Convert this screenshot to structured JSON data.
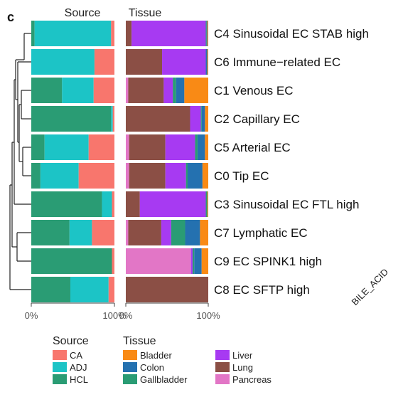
{
  "panel_label": "c",
  "cut_text": "BILE_ACID",
  "colors": {
    "CA": "#F8766D",
    "ADJ": "#1CC4C6",
    "HCL": "#2A9C74",
    "Bladder": "#F98A15",
    "Colon": "#2471B0",
    "Gallbladder": "#2A9C74",
    "Liver": "#A73AF2",
    "Lung": "#8B4F45",
    "Pancreas": "#E276C6"
  },
  "chart_data": [
    {
      "type": "bar",
      "orientation": "horizontal",
      "stacked": true,
      "title": "Source",
      "categories": [
        "C4 Sinusoidal EC STAB high",
        "C6 Immune−related EC",
        "C1 Venous EC",
        "C2 Capillary EC",
        "C5 Arterial EC",
        "C0 Tip EC",
        "C3 Sinusoidal EC FTL high",
        "C7 Lymphatic EC",
        "C9 EC SPINK1 high",
        "C8 EC SFTP high"
      ],
      "series": [
        {
          "name": "HCL",
          "values": [
            4,
            0,
            37,
            96,
            16,
            11,
            85,
            46,
            97,
            47
          ]
        },
        {
          "name": "ADJ",
          "values": [
            92,
            76,
            38,
            2,
            53,
            46,
            12,
            27,
            0,
            46
          ]
        },
        {
          "name": "CA",
          "values": [
            4,
            24,
            25,
            2,
            31,
            43,
            3,
            27,
            3,
            7
          ]
        }
      ],
      "xlim": [
        0,
        100
      ],
      "x_ticks": [
        "0%",
        "100%"
      ]
    },
    {
      "type": "bar",
      "orientation": "horizontal",
      "stacked": true,
      "title": "Tissue",
      "categories": [
        "C4 Sinusoidal EC STAB high",
        "C6 Immune−related EC",
        "C1 Venous EC",
        "C2 Capillary EC",
        "C5 Arterial EC",
        "C0 Tip EC",
        "C3 Sinusoidal EC FTL high",
        "C7 Lymphatic EC",
        "C9 EC SPINK1 high",
        "C8 EC SFTP high"
      ],
      "series": [
        {
          "name": "Pancreas",
          "values": [
            0,
            0,
            3,
            0,
            4,
            4,
            0,
            3,
            79,
            0
          ]
        },
        {
          "name": "Lung",
          "values": [
            7,
            44,
            43,
            78,
            44,
            44,
            17,
            40,
            0,
            100
          ]
        },
        {
          "name": "Liver",
          "values": [
            90,
            53,
            11,
            13,
            36,
            25,
            80,
            12,
            2,
            0
          ]
        },
        {
          "name": "Gallbladder",
          "values": [
            1,
            0,
            4,
            1,
            3,
            2,
            2,
            17,
            2,
            0
          ]
        },
        {
          "name": "Colon",
          "values": [
            1,
            2,
            10,
            4,
            9,
            18,
            0,
            18,
            9,
            0
          ]
        },
        {
          "name": "Bladder",
          "values": [
            1,
            1,
            29,
            4,
            4,
            7,
            1,
            10,
            8,
            0
          ]
        }
      ],
      "xlim": [
        0,
        100
      ],
      "x_ticks": [
        "0%",
        "100%"
      ]
    }
  ],
  "legend": {
    "source_title": "Source",
    "source_items": [
      "CA",
      "ADJ",
      "HCL"
    ],
    "tissue_title": "Tissue",
    "tissue_col1": [
      "Bladder",
      "Colon",
      "Gallbladder"
    ],
    "tissue_col2": [
      "Liver",
      "Lung",
      "Pancreas"
    ]
  }
}
